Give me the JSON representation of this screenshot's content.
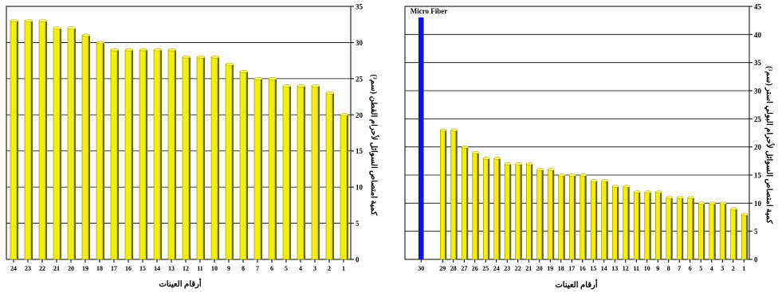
{
  "chart_data": [
    {
      "type": "bar",
      "title": "",
      "xlabel": "أرقام العينات",
      "ylabel": "كمية امتصاص السوائل لأحرام القطن (سم³)",
      "ylim": [
        0,
        35
      ],
      "yticks": [
        0,
        5,
        10,
        15,
        20,
        25,
        30,
        35
      ],
      "categories": [
        "24",
        "23",
        "22",
        "21",
        "20",
        "19",
        "18",
        "17",
        "16",
        "15",
        "14",
        "13",
        "12",
        "11",
        "10",
        "9",
        "8",
        "7",
        "6",
        "5",
        "4",
        "3",
        "2",
        "1"
      ],
      "values": [
        33,
        33,
        33,
        32,
        32,
        31,
        30,
        29,
        29,
        29,
        29,
        29,
        28,
        28,
        28,
        27,
        26,
        25,
        25,
        24,
        24,
        24,
        23,
        20
      ],
      "grid": true,
      "bar_color": "#f2ee14"
    },
    {
      "type": "bar",
      "title": "",
      "xlabel": "أرقام العينات",
      "ylabel": "كمية امتصاص السوائل لأحرام البولي استر (سم³)",
      "ylim": [
        0,
        45
      ],
      "yticks": [
        0,
        5,
        10,
        15,
        20,
        25,
        30,
        35,
        40,
        45
      ],
      "annotation": "Micro Fiber",
      "categories": [
        "30",
        "29",
        "28",
        "27",
        "26",
        "25",
        "24",
        "23",
        "22",
        "21",
        "20",
        "19",
        "18",
        "17",
        "16",
        "15",
        "14",
        "13",
        "12",
        "11",
        "10",
        "9",
        "8",
        "7",
        "6",
        "5",
        "4",
        "3",
        "2",
        "1"
      ],
      "values": [
        43,
        23,
        23,
        20,
        19,
        18,
        18,
        17,
        17,
        17,
        16,
        16,
        15,
        15,
        15,
        14,
        14,
        13,
        13,
        12,
        12,
        12,
        11,
        11,
        11,
        10,
        10,
        10,
        9,
        8
      ],
      "grid": true,
      "bar_color": "#f2ee14",
      "highlight_color": "#1010e0",
      "annotation_color": "#e01010"
    }
  ]
}
